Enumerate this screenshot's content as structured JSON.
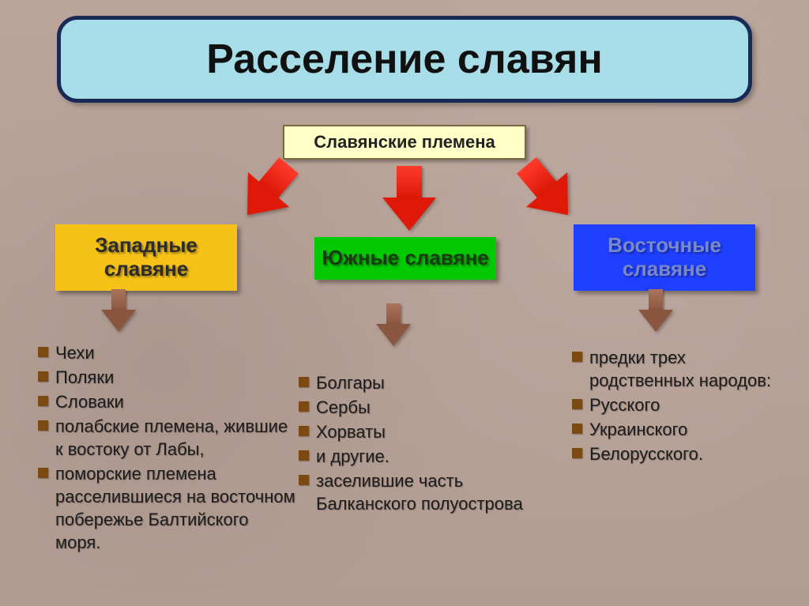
{
  "background_color": "#baa49a",
  "title": {
    "text": "Расселение славян",
    "bg": "#a7dde8",
    "border": "#1a2a56",
    "fontsize": 52,
    "radius": 26
  },
  "root": {
    "text": "Славянские племена",
    "bg": "#ffffc8",
    "border": "#7a6a42",
    "fontsize": 22
  },
  "arrows": {
    "big_color": "#e01808",
    "small_color": "#8a5640"
  },
  "branches": {
    "west": {
      "label": "Западные славяне",
      "bg": "#f6c218",
      "text_color": "#2b2b2b",
      "items": [
        "Чехи",
        "Поляки",
        "Словаки",
        "полабские племена, жившие к востоку от Лабы,",
        "поморские племена расселившиеся на восточном побережье Балтийского моря."
      ]
    },
    "south": {
      "label": "Южные славяне",
      "bg": "#05c905",
      "text_color": "#1a3a12",
      "items": [
        "Болгары",
        "Сербы",
        "Хорваты",
        "и другие.",
        "заселившие часть Балканского полуострова"
      ]
    },
    "east": {
      "label": "Восточные славяне",
      "bg": "#1f3fff",
      "text_color": "#7a88c7",
      "lead": "предки трех родственных народов:",
      "items": [
        "Русского",
        "Украинского",
        "Белорусского."
      ]
    }
  },
  "list_style": {
    "bullet_color": "#7a4a12",
    "bullet_size": 13,
    "fontsize": 22
  }
}
